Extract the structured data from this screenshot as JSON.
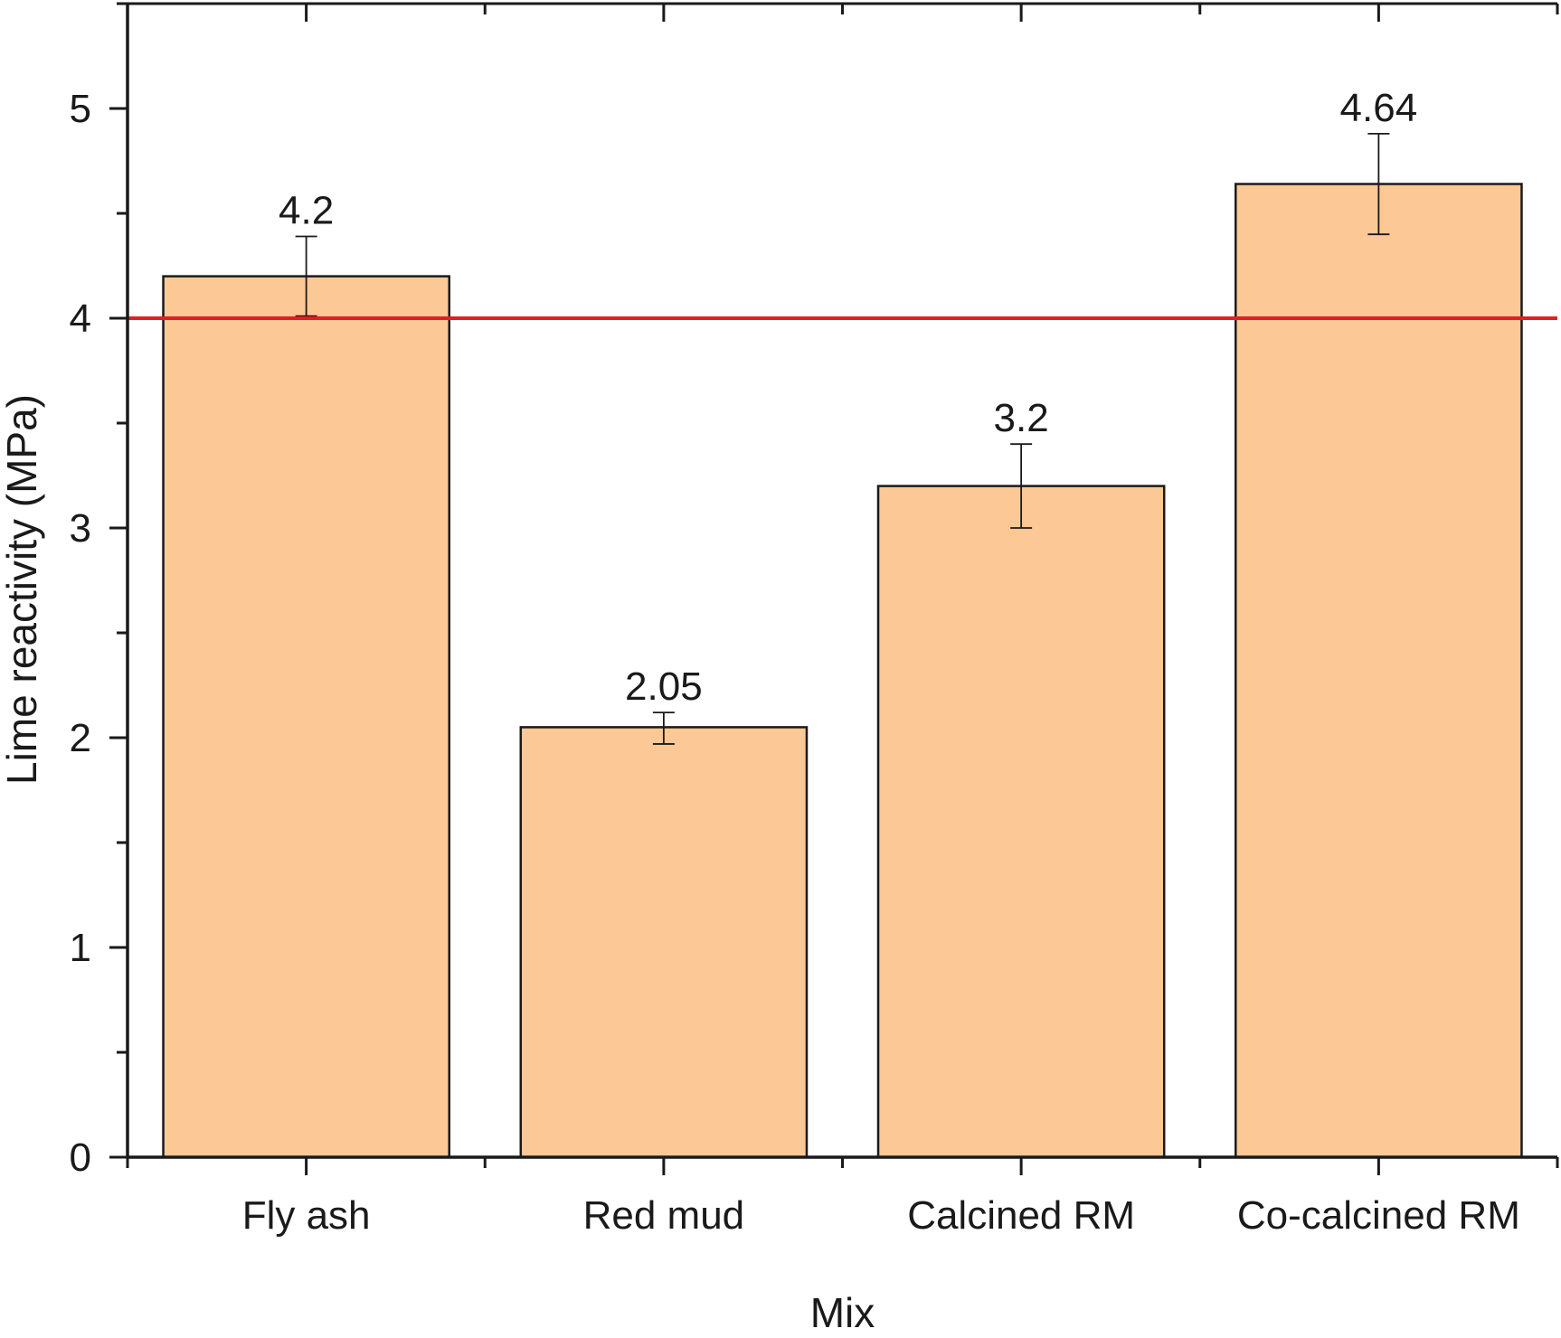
{
  "chart_data": {
    "type": "bar",
    "title": "",
    "xlabel": "Mix",
    "ylabel": "Lime reactivity (MPa)",
    "categories": [
      "Fly ash",
      "Red mud",
      "Calcined RM",
      "Co-calcined RM"
    ],
    "values": [
      4.2,
      2.05,
      3.2,
      4.64
    ],
    "value_labels": [
      "4.2",
      "2.05",
      "3.2",
      "4.64"
    ],
    "error_low": [
      4.01,
      1.97,
      3.0,
      4.4
    ],
    "error_high": [
      4.39,
      2.12,
      3.4,
      4.88
    ],
    "ylim": [
      0,
      5.5
    ],
    "yticks": [
      0,
      1,
      2,
      3,
      4,
      5
    ],
    "ytick_labels": [
      "0",
      "1",
      "2",
      "3",
      "4",
      "5"
    ],
    "reference_line": 4,
    "grid": false,
    "colors": {
      "bar_fill": "#FBC896",
      "bar_stroke": "#1a1a1a",
      "reference_line": "#E31E24",
      "axis": "#1a1a1a"
    }
  }
}
